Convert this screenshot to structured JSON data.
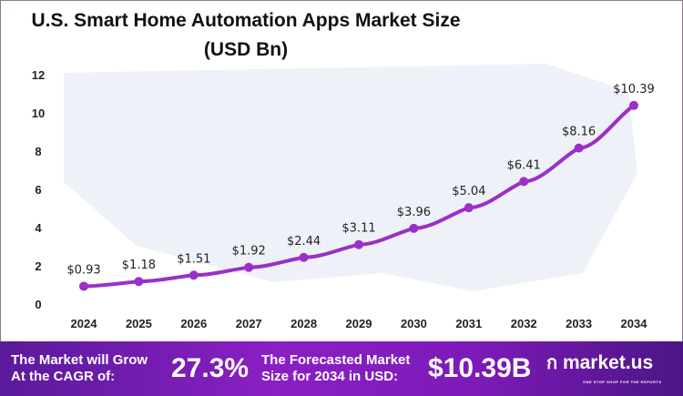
{
  "chart_data": {
    "type": "line",
    "title": "U.S. Smart Home Automation Apps Market Size",
    "subtitle": "(USD Bn)",
    "categories": [
      "2024",
      "2025",
      "2026",
      "2027",
      "2028",
      "2029",
      "2030",
      "2031",
      "2032",
      "2033",
      "2034"
    ],
    "values": [
      0.93,
      1.18,
      1.51,
      1.92,
      2.44,
      3.11,
      3.96,
      5.04,
      6.41,
      8.16,
      10.39
    ],
    "data_labels": [
      "$0.93",
      "$1.18",
      "$1.51",
      "$1.92",
      "$2.44",
      "$3.11",
      "$3.96",
      "$5.04",
      "$6.41",
      "$8.16",
      "$10.39"
    ],
    "yticks": [
      "0",
      "2",
      "4",
      "6",
      "8",
      "10",
      "12"
    ],
    "ylim": [
      0,
      12
    ],
    "grid": false,
    "line_color": "#9b2fc9"
  },
  "footer": {
    "cagr_label_1": "The Market will Grow",
    "cagr_label_2": "At the CAGR of:",
    "cagr_value": "27.3%",
    "forecast_label_1": "The Forecasted Market",
    "forecast_label_2": "Size for 2034 in USD:",
    "forecast_value": "$10.39B",
    "logo_text": "market.us",
    "logo_tagline": "ONE STOP SHOP FOR THE REPORTS"
  }
}
